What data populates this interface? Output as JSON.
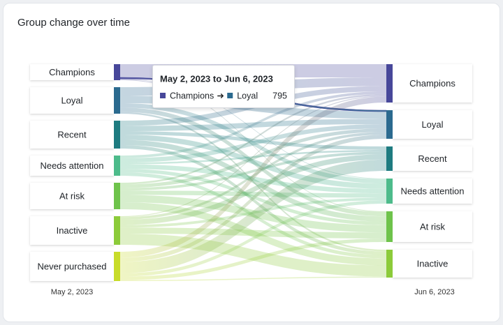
{
  "chart_data": {
    "type": "sankey",
    "title": "Group change over time",
    "left": {
      "label": "May 2, 2023",
      "nodes": [
        {
          "name": "Champions",
          "color": "#47479a"
        },
        {
          "name": "Loyal",
          "color": "#2b6a8f"
        },
        {
          "name": "Recent",
          "color": "#1e7b80"
        },
        {
          "name": "Needs attention",
          "color": "#4dbb8b"
        },
        {
          "name": "At risk",
          "color": "#6ec34b"
        },
        {
          "name": "Inactive",
          "color": "#8ccb3a"
        },
        {
          "name": "Never purchased",
          "color": "#c8dc2a"
        }
      ]
    },
    "right": {
      "label": "Jun 6, 2023",
      "nodes": [
        {
          "name": "Champions",
          "color": "#47479a"
        },
        {
          "name": "Loyal",
          "color": "#2b6a8f"
        },
        {
          "name": "Recent",
          "color": "#1e7b80"
        },
        {
          "name": "Needs attention",
          "color": "#4dbb8b"
        },
        {
          "name": "At risk",
          "color": "#6ec34b"
        },
        {
          "name": "Inactive",
          "color": "#8ccb3a"
        }
      ]
    },
    "links": [
      {
        "source": "Champions",
        "target": "Champions",
        "value": 7600
      },
      {
        "source": "Champions",
        "target": "Loyal",
        "value": 795
      },
      {
        "source": "Champions",
        "target": "Needs attention",
        "value": 400
      },
      {
        "source": "Champions",
        "target": "At risk",
        "value": 405
      },
      {
        "source": "Loyal",
        "target": "Champions",
        "value": 5000
      },
      {
        "source": "Loyal",
        "target": "Loyal",
        "value": 4200
      },
      {
        "source": "Loyal",
        "target": "Needs attention",
        "value": 2500
      },
      {
        "source": "Loyal",
        "target": "At risk",
        "value": 2500
      },
      {
        "source": "Loyal",
        "target": "Inactive",
        "value": 1000
      },
      {
        "source": "Recent",
        "target": "Champions",
        "value": 3000
      },
      {
        "source": "Recent",
        "target": "Loyal",
        "value": 3000
      },
      {
        "source": "Recent",
        "target": "Recent",
        "value": 2000
      },
      {
        "source": "Recent",
        "target": "Needs attention",
        "value": 3000
      },
      {
        "source": "Recent",
        "target": "At risk",
        "value": 3000
      },
      {
        "source": "Recent",
        "target": "Inactive",
        "value": 2000
      },
      {
        "source": "Needs attention",
        "target": "Champions",
        "value": 1500
      },
      {
        "source": "Needs attention",
        "target": "Loyal",
        "value": 2500
      },
      {
        "source": "Needs attention",
        "target": "Recent",
        "value": 1000
      },
      {
        "source": "Needs attention",
        "target": "Needs attention",
        "value": 2600
      },
      {
        "source": "Needs attention",
        "target": "At risk",
        "value": 2000
      },
      {
        "source": "Needs attention",
        "target": "Inactive",
        "value": 2000
      },
      {
        "source": "At risk",
        "target": "Champions",
        "value": 1000
      },
      {
        "source": "At risk",
        "target": "Loyal",
        "value": 2000
      },
      {
        "source": "At risk",
        "target": "Recent",
        "value": 1500
      },
      {
        "source": "At risk",
        "target": "Needs attention",
        "value": 2500
      },
      {
        "source": "At risk",
        "target": "At risk",
        "value": 4200
      },
      {
        "source": "At risk",
        "target": "Inactive",
        "value": 4000
      },
      {
        "source": "Inactive",
        "target": "Champions",
        "value": 500
      },
      {
        "source": "Inactive",
        "target": "Loyal",
        "value": 1500
      },
      {
        "source": "Inactive",
        "target": "Recent",
        "value": 3000
      },
      {
        "source": "Inactive",
        "target": "Needs attention",
        "value": 1500
      },
      {
        "source": "Inactive",
        "target": "At risk",
        "value": 3500
      },
      {
        "source": "Inactive",
        "target": "Inactive",
        "value": 6400
      },
      {
        "source": "Never purchased",
        "target": "Champions",
        "value": 3400
      },
      {
        "source": "Never purchased",
        "target": "Loyal",
        "value": 2400
      },
      {
        "source": "Never purchased",
        "target": "Recent",
        "value": 6500
      },
      {
        "source": "Never purchased",
        "target": "Needs attention",
        "value": 1900
      },
      {
        "source": "Never purchased",
        "target": "At risk",
        "value": 2000
      },
      {
        "source": "Never purchased",
        "target": "Inactive",
        "value": 600
      }
    ],
    "tooltip": {
      "title": "May 2, 2023 to Jun 6, 2023"
    }
  }
}
